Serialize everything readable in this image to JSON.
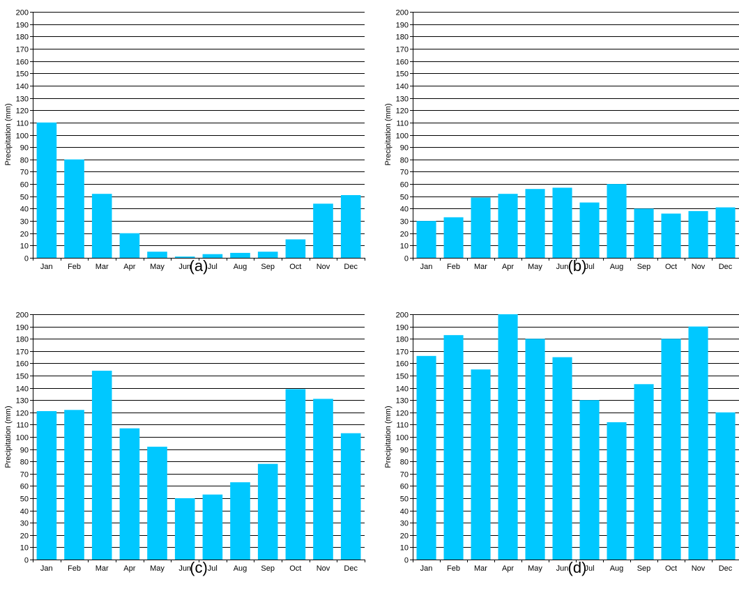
{
  "figure": {
    "colors": {
      "bar": "#00c8ff",
      "bar_edge": "#00a8d8",
      "grid": "#000000",
      "axis": "#000000"
    }
  },
  "chart_data": [
    {
      "type": "bar",
      "panel_label": "(a)",
      "ylabel": "Precipitation (mm)",
      "ylim": [
        0,
        200
      ],
      "ytick_step": 10,
      "grid": "horizontal",
      "categories": [
        "Jan",
        "Feb",
        "Mar",
        "Apr",
        "May",
        "Jun",
        "Jul",
        "Aug",
        "Sep",
        "Oct",
        "Nov",
        "Dec"
      ],
      "values": [
        110,
        80,
        52,
        20,
        5,
        1,
        3,
        4,
        5,
        15,
        44,
        51
      ]
    },
    {
      "type": "bar",
      "panel_label": "(b)",
      "ylabel": "Precipitation (mm)",
      "ylim": [
        0,
        200
      ],
      "ytick_step": 10,
      "grid": "horizontal",
      "categories": [
        "Jan",
        "Feb",
        "Mar",
        "Apr",
        "May",
        "Jun",
        "Jul",
        "Aug",
        "Sep",
        "Oct",
        "Nov",
        "Dec"
      ],
      "values": [
        30,
        33,
        49,
        52,
        56,
        57,
        45,
        60,
        40,
        36,
        38,
        41
      ]
    },
    {
      "type": "bar",
      "panel_label": "(c)",
      "ylabel": "Precipitation (mm)",
      "ylim": [
        0,
        200
      ],
      "ytick_step": 10,
      "grid": "horizontal",
      "categories": [
        "Jan",
        "Feb",
        "Mar",
        "Apr",
        "May",
        "Jun",
        "Jul",
        "Aug",
        "Sep",
        "Oct",
        "Nov",
        "Dec"
      ],
      "values": [
        121,
        122,
        154,
        107,
        92,
        50,
        53,
        63,
        78,
        139,
        131,
        103
      ]
    },
    {
      "type": "bar",
      "panel_label": "(d)",
      "ylabel": "Precipitation (mm)",
      "ylim": [
        0,
        200
      ],
      "ytick_step": 10,
      "grid": "horizontal",
      "categories": [
        "Jan",
        "Feb",
        "Mar",
        "Apr",
        "May",
        "Jun",
        "Jul",
        "Aug",
        "Sep",
        "Oct",
        "Nov",
        "Dec"
      ],
      "values": [
        166,
        183,
        155,
        200,
        180,
        165,
        130,
        112,
        143,
        180,
        190,
        120
      ]
    }
  ]
}
